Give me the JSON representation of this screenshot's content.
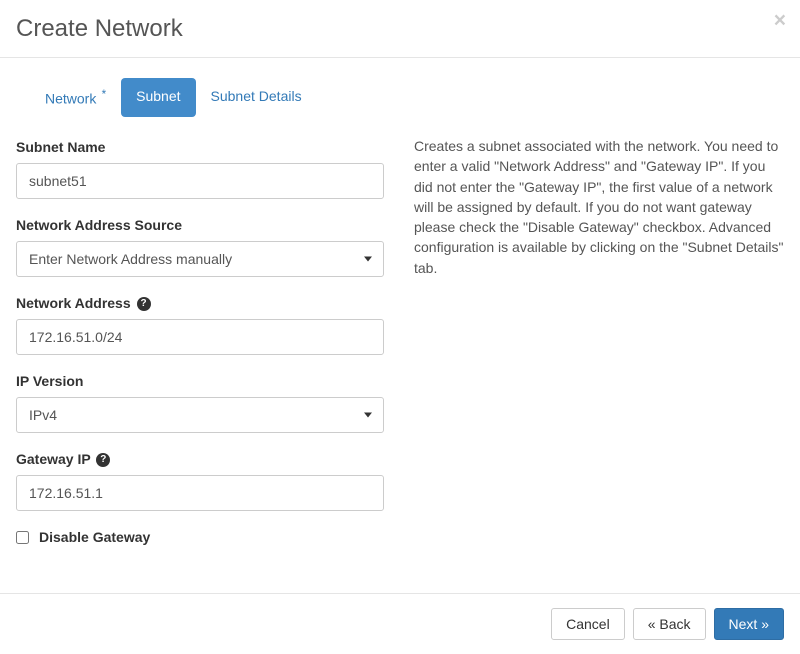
{
  "header": {
    "title": "Create Network"
  },
  "tabs": {
    "network_label": "Network",
    "subnet_label": "Subnet",
    "subnet_details_label": "Subnet Details"
  },
  "form": {
    "subnet_name": {
      "label": "Subnet Name",
      "value": "subnet51"
    },
    "network_address_source": {
      "label": "Network Address Source",
      "value": "Enter Network Address manually"
    },
    "network_address": {
      "label": "Network Address",
      "value": "172.16.51.0/24"
    },
    "ip_version": {
      "label": "IP Version",
      "value": "IPv4"
    },
    "gateway_ip": {
      "label": "Gateway IP",
      "value": "172.16.51.1"
    },
    "disable_gateway": {
      "label": "Disable Gateway"
    }
  },
  "help_text": "Creates a subnet associated with the network. You need to enter a valid \"Network Address\" and \"Gateway IP\". If you did not enter the \"Gateway IP\", the first value of a network will be assigned by default. If you do not want gateway please check the \"Disable Gateway\" checkbox. Advanced configuration is available by clicking on the \"Subnet Details\" tab.",
  "footer": {
    "cancel_label": "Cancel",
    "back_label": "« Back",
    "next_label": "Next »"
  }
}
